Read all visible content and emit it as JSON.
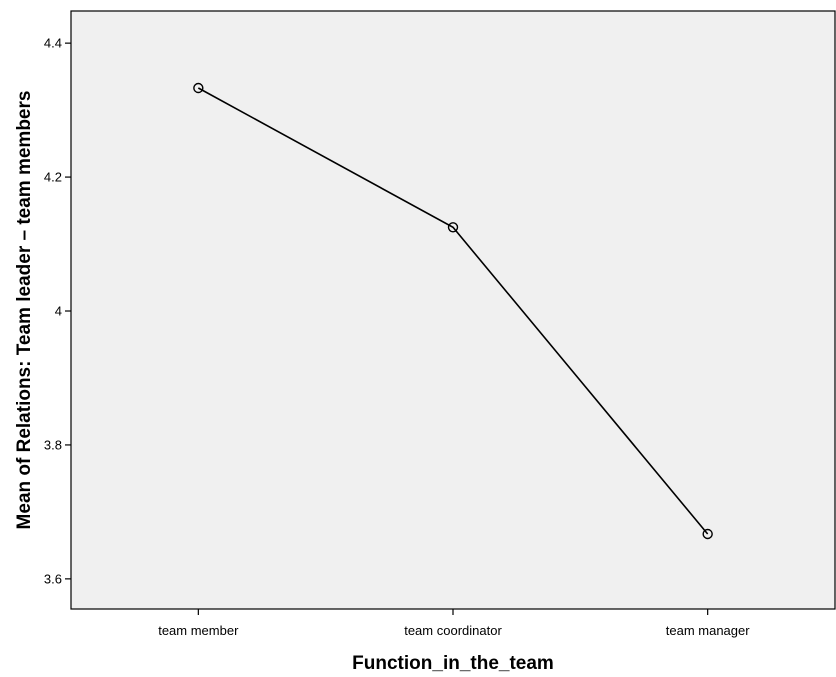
{
  "chart_data": {
    "type": "line",
    "title": "",
    "xlabel": "Function_in_the_team",
    "ylabel": "Mean of Relations: Team leader – team members",
    "categories": [
      "team member",
      "team coordinator",
      "team manager"
    ],
    "series": [
      {
        "values": [
          4.333,
          4.125,
          3.667
        ]
      }
    ],
    "ylim": [
      3.555,
      4.448
    ],
    "yticks": [
      3.6,
      3.8,
      4,
      4.2,
      4.4
    ],
    "ytick_labels": [
      "3.6",
      "3.8",
      "4",
      "4.2",
      "4.4"
    ],
    "grid": false,
    "legend": "none",
    "colors": {
      "plot_background": "#f0f0f0",
      "line": "#000000",
      "marker": "#000000"
    }
  }
}
